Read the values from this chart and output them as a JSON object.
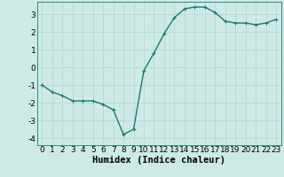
{
  "x": [
    0,
    1,
    2,
    3,
    4,
    5,
    6,
    7,
    8,
    9,
    10,
    11,
    12,
    13,
    14,
    15,
    16,
    17,
    18,
    19,
    20,
    21,
    22,
    23
  ],
  "y": [
    -1.0,
    -1.4,
    -1.6,
    -1.9,
    -1.9,
    -1.9,
    -2.1,
    -2.4,
    -3.8,
    -3.5,
    -0.2,
    0.8,
    1.9,
    2.8,
    3.3,
    3.4,
    3.4,
    3.1,
    2.6,
    2.5,
    2.5,
    2.4,
    2.5,
    2.7
  ],
  "line_color": "#1a7a6e",
  "marker": "+",
  "marker_size": 3,
  "marker_lw": 0.8,
  "bg_color": "#cdeae6",
  "grid_color": "#b0d5d0",
  "xlabel": "Humidex (Indice chaleur)",
  "xlim": [
    -0.5,
    23.5
  ],
  "ylim": [
    -4.4,
    3.7
  ],
  "yticks": [
    -4,
    -3,
    -2,
    -1,
    0,
    1,
    2,
    3
  ],
  "xticks": [
    0,
    1,
    2,
    3,
    4,
    5,
    6,
    7,
    8,
    9,
    10,
    11,
    12,
    13,
    14,
    15,
    16,
    17,
    18,
    19,
    20,
    21,
    22,
    23
  ],
  "tick_label_fontsize": 6.5,
  "xlabel_fontsize": 7.5,
  "line_width": 1.0,
  "figsize": [
    3.2,
    2.0
  ],
  "dpi": 100
}
